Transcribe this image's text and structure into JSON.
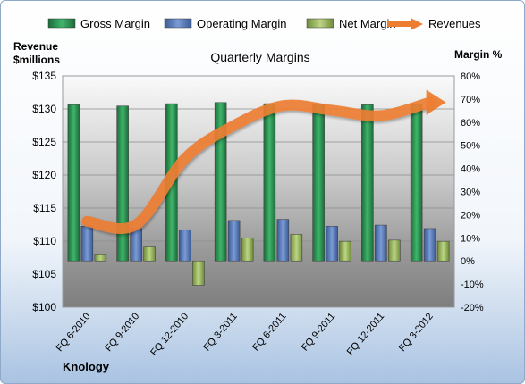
{
  "chart_data": {
    "type": "bar",
    "title": "Quarterly Margins",
    "categories": [
      "FQ 6-2010",
      "FQ 9-2010",
      "FQ 12-2010",
      "FQ 3-2011",
      "FQ 6-2011",
      "FQ 9-2011",
      "FQ 12-2011",
      "FQ 3-2012"
    ],
    "series": [
      {
        "name": "Gross Margin",
        "type": "bar",
        "axis": "right",
        "color": "#2e9a57",
        "values": [
          67.5,
          67.0,
          68.0,
          68.5,
          68.0,
          67.5,
          67.5,
          67.5
        ]
      },
      {
        "name": "Operating Margin",
        "type": "bar",
        "axis": "right",
        "color": "#5b7fbf",
        "values": [
          15.0,
          14.0,
          13.5,
          17.5,
          18.0,
          15.0,
          15.5,
          14.0
        ]
      },
      {
        "name": "Net Margin",
        "type": "bar",
        "axis": "right",
        "color": "#9dbb61",
        "values": [
          3.0,
          6.0,
          -10.5,
          10.0,
          11.5,
          8.5,
          9.0,
          8.5
        ]
      },
      {
        "name": "Revenues",
        "type": "line",
        "axis": "left",
        "color": "#ed7d31",
        "values": [
          113.0,
          112.5,
          122.5,
          127.5,
          130.5,
          129.8,
          129.0,
          131.0
        ]
      }
    ],
    "y_left": {
      "label_line1": "Revenue",
      "label_line2": "$millions",
      "min": 100,
      "max": 135,
      "step": 5,
      "prefix": "$"
    },
    "y_right": {
      "label": "Margin %",
      "min": -20,
      "max": 80,
      "step": 10,
      "suffix": "%"
    },
    "footer": "Knology",
    "legend_position": "top",
    "grid": true
  }
}
